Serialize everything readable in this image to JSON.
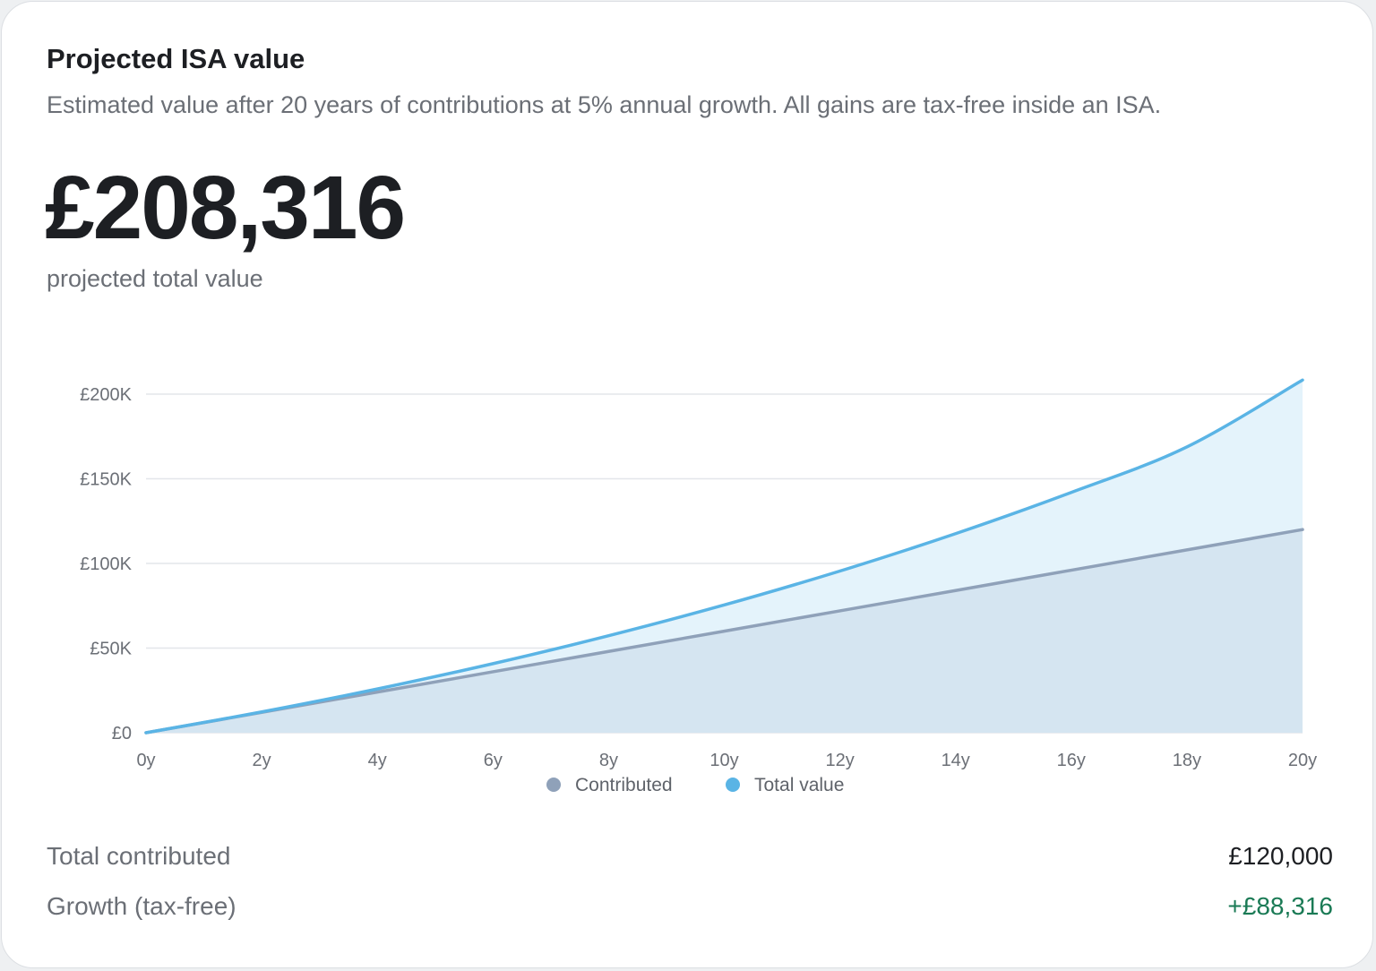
{
  "card": {
    "title": "Projected ISA value",
    "subtitle": "Estimated value after 20 years of contributions at 5% annual growth. All gains are tax-free inside an ISA.",
    "big_value": "£208,316",
    "big_caption": "projected total value"
  },
  "colors": {
    "contributed_line": "#8fa1b9",
    "contributed_fill": "#d5e5f1",
    "total_line": "#5ab4e5",
    "total_fill": "#e4f3fb",
    "grid": "#e3e6ea",
    "positive": "#1a7a55"
  },
  "chart_data": {
    "type": "area",
    "x": [
      0,
      2,
      4,
      6,
      8,
      10,
      12,
      14,
      16,
      18,
      20
    ],
    "x_tick_labels": [
      "0y",
      "2y",
      "4y",
      "6y",
      "8y",
      "10y",
      "12y",
      "14y",
      "16y",
      "18y",
      "20y"
    ],
    "y_ticks": [
      0,
      50000,
      100000,
      150000,
      200000
    ],
    "y_tick_labels": [
      "£0",
      "£50K",
      "£100K",
      "£150K",
      "£200K"
    ],
    "ylim": [
      0,
      200000
    ],
    "xlim": [
      0,
      20
    ],
    "series": [
      {
        "name": "Contributed",
        "values": [
          0,
          12000,
          24000,
          36000,
          48000,
          60000,
          72000,
          84000,
          96000,
          108000,
          120000
        ]
      },
      {
        "name": "Total value",
        "values": [
          0,
          12300,
          25860,
          40810,
          57300,
          75470,
          95510,
          117600,
          141950,
          168800,
          208316
        ]
      }
    ],
    "legend_position": "bottom",
    "grid": true
  },
  "stats": {
    "contributed_label": "Total contributed",
    "contributed_value": "£120,000",
    "growth_label": "Growth (tax-free)",
    "growth_value": "+£88,316"
  }
}
